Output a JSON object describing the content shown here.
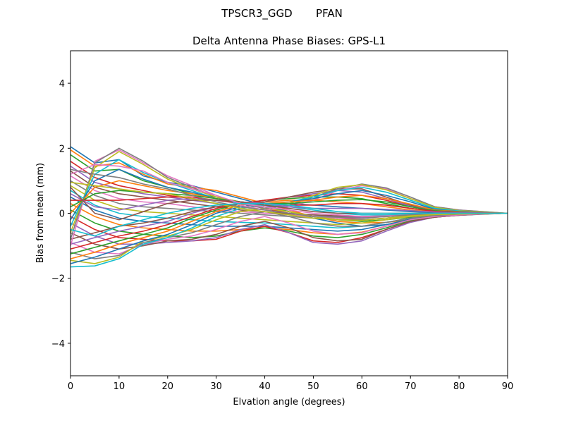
{
  "figure": {
    "suptitle": "TPSCR3_GGD       PFAN"
  },
  "chart_data": {
    "type": "line",
    "title": "Delta Antenna Phase Biases: GPS-L1",
    "xlabel": "Elvation angle (degrees)",
    "ylabel": "Bias from mean (mm)",
    "xlim": [
      0,
      90
    ],
    "ylim": [
      -5,
      5
    ],
    "xticks": [
      0,
      10,
      20,
      30,
      40,
      50,
      60,
      70,
      80,
      90
    ],
    "yticks": [
      -4,
      -2,
      0,
      2,
      4
    ],
    "ytick_labels": [
      "−4",
      "−2",
      "0",
      "2",
      "4"
    ],
    "grid": false,
    "legend": "none",
    "x": [
      0,
      5,
      10,
      15,
      20,
      25,
      30,
      35,
      40,
      45,
      50,
      55,
      60,
      65,
      70,
      75,
      80,
      85,
      90
    ],
    "colors": [
      "#1f77b4",
      "#ff7f0e",
      "#2ca02c",
      "#d62728",
      "#9467bd",
      "#8c564b",
      "#e377c2",
      "#7f7f7f",
      "#bcbd22",
      "#17becf"
    ],
    "series": [
      {
        "values": [
          2.05,
          1.55,
          1.65,
          1.15,
          0.95,
          0.85,
          0.65,
          0.45,
          0.25,
          0.05,
          -0.15,
          -0.3,
          -0.4,
          -0.35,
          -0.22,
          -0.12,
          -0.06,
          -0.03,
          0
        ]
      },
      {
        "values": [
          1.95,
          1.45,
          1.55,
          1.2,
          0.9,
          0.8,
          0.7,
          0.5,
          0.3,
          0.1,
          -0.1,
          -0.25,
          -0.3,
          -0.28,
          -0.2,
          -0.1,
          -0.05,
          -0.02,
          0
        ]
      },
      {
        "values": [
          1.8,
          1.3,
          1.35,
          1.0,
          0.8,
          0.6,
          0.5,
          0.35,
          0.2,
          0.05,
          -0.1,
          -0.2,
          -0.25,
          -0.2,
          -0.12,
          -0.06,
          -0.03,
          -0.01,
          0
        ]
      },
      {
        "values": [
          1.6,
          1.1,
          0.85,
          0.7,
          0.55,
          0.45,
          0.4,
          0.3,
          0.15,
          0.0,
          -0.1,
          -0.15,
          -0.2,
          -0.15,
          -0.1,
          -0.05,
          -0.02,
          -0.01,
          0
        ]
      },
      {
        "values": [
          1.45,
          0.95,
          0.75,
          0.6,
          0.5,
          0.4,
          0.3,
          0.2,
          0.1,
          0.0,
          -0.05,
          -0.1,
          -0.12,
          -0.1,
          -0.06,
          -0.03,
          -0.01,
          0.0,
          0
        ]
      },
      {
        "values": [
          1.3,
          0.8,
          0.6,
          0.5,
          0.4,
          0.3,
          0.2,
          0.1,
          0.05,
          -0.02,
          -0.05,
          -0.08,
          -0.1,
          -0.08,
          -0.05,
          -0.02,
          -0.01,
          0.0,
          0
        ]
      },
      {
        "values": [
          1.15,
          0.7,
          0.45,
          0.35,
          0.3,
          0.2,
          0.1,
          0.05,
          0.0,
          -0.05,
          -0.1,
          -0.15,
          -0.15,
          -0.1,
          -0.05,
          -0.02,
          -0.01,
          0.0,
          0
        ]
      },
      {
        "values": [
          1.0,
          0.55,
          0.3,
          0.2,
          0.15,
          0.1,
          0.05,
          0.0,
          -0.05,
          -0.1,
          -0.15,
          -0.2,
          -0.2,
          -0.15,
          -0.08,
          -0.04,
          -0.02,
          -0.01,
          0
        ]
      },
      {
        "values": [
          0.85,
          0.4,
          0.15,
          0.05,
          0.0,
          -0.05,
          -0.1,
          -0.15,
          -0.2,
          -0.25,
          -0.3,
          -0.35,
          -0.3,
          -0.2,
          -0.1,
          -0.05,
          -0.02,
          -0.01,
          0
        ]
      },
      {
        "values": [
          0.7,
          0.25,
          0.0,
          -0.1,
          -0.15,
          -0.2,
          -0.25,
          -0.28,
          -0.3,
          -0.35,
          -0.4,
          -0.45,
          -0.4,
          -0.28,
          -0.15,
          -0.07,
          -0.03,
          -0.01,
          0
        ]
      },
      {
        "values": [
          0.5,
          0.1,
          -0.15,
          -0.25,
          -0.3,
          -0.35,
          -0.4,
          -0.4,
          -0.4,
          -0.45,
          -0.5,
          -0.55,
          -0.5,
          -0.35,
          -0.18,
          -0.08,
          -0.04,
          -0.01,
          0
        ]
      },
      {
        "values": [
          0.3,
          -0.1,
          -0.35,
          -0.45,
          -0.5,
          -0.55,
          -0.55,
          -0.5,
          -0.45,
          -0.5,
          -0.6,
          -0.65,
          -0.58,
          -0.4,
          -0.2,
          -0.1,
          -0.05,
          -0.02,
          0
        ]
      },
      {
        "values": [
          0.1,
          -0.3,
          -0.55,
          -0.65,
          -0.7,
          -0.75,
          -0.7,
          -0.55,
          -0.45,
          -0.55,
          -0.7,
          -0.75,
          -0.65,
          -0.45,
          -0.22,
          -0.1,
          -0.05,
          -0.02,
          0
        ]
      },
      {
        "values": [
          -0.1,
          -0.5,
          -0.75,
          -0.8,
          -0.85,
          -0.85,
          -0.8,
          -0.55,
          -0.4,
          -0.6,
          -0.85,
          -0.9,
          -0.75,
          -0.5,
          -0.25,
          -0.12,
          -0.06,
          -0.02,
          0
        ]
      },
      {
        "values": [
          -0.3,
          -0.7,
          -0.95,
          -0.95,
          -0.9,
          -0.85,
          -0.75,
          -0.5,
          -0.35,
          -0.6,
          -0.9,
          -0.95,
          -0.85,
          -0.55,
          -0.28,
          -0.12,
          -0.06,
          -0.02,
          0
        ]
      },
      {
        "values": [
          -0.6,
          -0.95,
          -1.1,
          -1.0,
          -0.85,
          -0.8,
          -0.65,
          -0.4,
          -0.25,
          -0.45,
          -0.75,
          -0.85,
          -0.8,
          -0.5,
          -0.25,
          -0.12,
          -0.06,
          -0.02,
          0
        ]
      },
      {
        "values": [
          -0.9,
          -1.2,
          -1.25,
          -0.95,
          -0.8,
          -0.7,
          -0.5,
          -0.25,
          -0.1,
          -0.3,
          -0.55,
          -0.65,
          -0.6,
          -0.4,
          -0.2,
          -0.1,
          -0.05,
          -0.02,
          0
        ]
      },
      {
        "values": [
          -1.2,
          -1.4,
          -1.3,
          -0.9,
          -0.75,
          -0.6,
          -0.35,
          -0.1,
          0.05,
          -0.1,
          -0.3,
          -0.4,
          -0.4,
          -0.28,
          -0.15,
          -0.07,
          -0.03,
          -0.01,
          0
        ]
      },
      {
        "values": [
          -1.45,
          -1.55,
          -1.35,
          -0.85,
          -0.7,
          -0.5,
          -0.2,
          0.05,
          0.15,
          0.05,
          -0.1,
          -0.2,
          -0.22,
          -0.15,
          -0.08,
          -0.04,
          -0.02,
          -0.01,
          0
        ]
      },
      {
        "values": [
          -1.65,
          -1.62,
          -1.4,
          -0.95,
          -0.75,
          -0.45,
          -0.1,
          0.15,
          0.25,
          0.2,
          0.1,
          0.0,
          -0.05,
          -0.05,
          -0.02,
          0.0,
          0.0,
          0.0,
          0
        ]
      },
      {
        "values": [
          -1.55,
          -1.35,
          -1.1,
          -0.85,
          -0.65,
          -0.35,
          0.0,
          0.2,
          0.3,
          0.3,
          0.25,
          0.2,
          0.15,
          0.1,
          0.05,
          0.02,
          0.01,
          0.0,
          0
        ]
      },
      {
        "values": [
          -1.4,
          -1.2,
          -0.95,
          -0.75,
          -0.55,
          -0.25,
          0.05,
          0.25,
          0.35,
          0.4,
          0.4,
          0.35,
          0.3,
          0.2,
          0.1,
          0.05,
          0.02,
          0.01,
          0
        ]
      },
      {
        "values": [
          -1.25,
          -1.05,
          -0.85,
          -0.65,
          -0.45,
          -0.15,
          0.1,
          0.3,
          0.4,
          0.45,
          0.5,
          0.5,
          0.45,
          0.3,
          0.15,
          0.07,
          0.03,
          0.01,
          0
        ]
      },
      {
        "values": [
          -1.1,
          -0.9,
          -0.7,
          -0.55,
          -0.35,
          -0.1,
          0.15,
          0.3,
          0.4,
          0.5,
          0.55,
          0.6,
          0.55,
          0.4,
          0.2,
          0.1,
          0.05,
          0.02,
          0
        ]
      },
      {
        "values": [
          -0.95,
          -0.75,
          -0.55,
          -0.4,
          -0.25,
          0.0,
          0.2,
          0.3,
          0.35,
          0.5,
          0.6,
          0.7,
          0.65,
          0.45,
          0.22,
          0.1,
          0.05,
          0.02,
          0
        ]
      },
      {
        "values": [
          -0.8,
          -0.6,
          -0.4,
          -0.3,
          -0.15,
          0.05,
          0.2,
          0.3,
          0.35,
          0.5,
          0.65,
          0.75,
          0.75,
          0.5,
          0.25,
          0.12,
          0.06,
          0.02,
          0
        ]
      },
      {
        "values": [
          -1.0,
          1.6,
          1.95,
          1.55,
          1.15,
          0.85,
          0.55,
          0.25,
          0.1,
          0.2,
          0.4,
          0.7,
          0.85,
          0.75,
          0.45,
          0.2,
          0.1,
          0.05,
          0
        ]
      },
      {
        "values": [
          -0.8,
          1.55,
          2.0,
          1.6,
          1.1,
          0.8,
          0.5,
          0.3,
          0.15,
          0.25,
          0.5,
          0.75,
          0.9,
          0.78,
          0.5,
          0.2,
          0.1,
          0.05,
          0
        ]
      },
      {
        "values": [
          -0.6,
          1.4,
          1.9,
          1.5,
          1.05,
          0.75,
          0.5,
          0.35,
          0.25,
          0.3,
          0.55,
          0.8,
          0.88,
          0.72,
          0.45,
          0.18,
          0.08,
          0.04,
          0
        ]
      },
      {
        "values": [
          -0.4,
          1.2,
          1.65,
          1.25,
          0.95,
          0.7,
          0.45,
          0.3,
          0.25,
          0.35,
          0.5,
          0.7,
          0.8,
          0.65,
          0.4,
          0.15,
          0.07,
          0.03,
          0
        ]
      },
      {
        "values": [
          -0.2,
          1.0,
          1.35,
          1.05,
          0.8,
          0.65,
          0.45,
          0.35,
          0.3,
          0.35,
          0.45,
          0.6,
          0.7,
          0.55,
          0.35,
          0.12,
          0.05,
          0.02,
          0
        ]
      },
      {
        "values": [
          0.0,
          0.8,
          1.0,
          0.85,
          0.7,
          0.6,
          0.45,
          0.35,
          0.3,
          0.35,
          0.4,
          0.5,
          0.55,
          0.45,
          0.28,
          0.1,
          0.05,
          0.02,
          0
        ]
      },
      {
        "values": [
          0.2,
          0.6,
          0.7,
          0.65,
          0.6,
          0.55,
          0.45,
          0.35,
          0.3,
          0.3,
          0.35,
          0.4,
          0.42,
          0.35,
          0.2,
          0.08,
          0.04,
          0.01,
          0
        ]
      },
      {
        "values": [
          0.4,
          0.4,
          0.4,
          0.45,
          0.5,
          0.5,
          0.4,
          0.35,
          0.3,
          0.25,
          0.25,
          0.3,
          0.3,
          0.25,
          0.15,
          0.06,
          0.03,
          0.01,
          0
        ]
      },
      {
        "values": [
          0.6,
          0.2,
          0.1,
          0.25,
          0.4,
          0.45,
          0.4,
          0.35,
          0.3,
          0.2,
          0.15,
          0.15,
          0.15,
          0.12,
          0.08,
          0.04,
          0.02,
          0.01,
          0
        ]
      },
      {
        "values": [
          0.8,
          0.0,
          -0.2,
          0.05,
          0.3,
          0.4,
          0.4,
          0.35,
          0.25,
          0.15,
          0.05,
          0.0,
          0.0,
          0.0,
          0.0,
          0.0,
          0.0,
          0.0,
          0
        ]
      },
      {
        "values": [
          1.2,
          1.5,
          1.45,
          1.3,
          0.95,
          0.75,
          0.55,
          0.3,
          0.2,
          0.1,
          0.0,
          -0.05,
          -0.1,
          -0.08,
          -0.05,
          -0.02,
          -0.01,
          0.0,
          0
        ]
      },
      {
        "values": [
          1.35,
          1.2,
          1.1,
          0.9,
          0.75,
          0.55,
          0.35,
          0.2,
          0.1,
          0.0,
          -0.1,
          -0.12,
          -0.15,
          -0.1,
          -0.05,
          -0.02,
          -0.01,
          0.0,
          0
        ]
      },
      {
        "values": [
          0.95,
          0.85,
          0.75,
          0.65,
          0.6,
          0.45,
          0.3,
          0.15,
          0.05,
          -0.05,
          -0.15,
          -0.2,
          -0.22,
          -0.15,
          -0.08,
          -0.04,
          -0.02,
          -0.01,
          0
        ]
      },
      {
        "values": [
          -0.5,
          -0.7,
          -0.4,
          -0.2,
          0.0,
          0.15,
          0.25,
          0.3,
          0.3,
          0.25,
          0.15,
          0.05,
          0.0,
          0.0,
          0.0,
          0.0,
          0.0,
          0.0,
          0
        ]
      }
    ]
  }
}
